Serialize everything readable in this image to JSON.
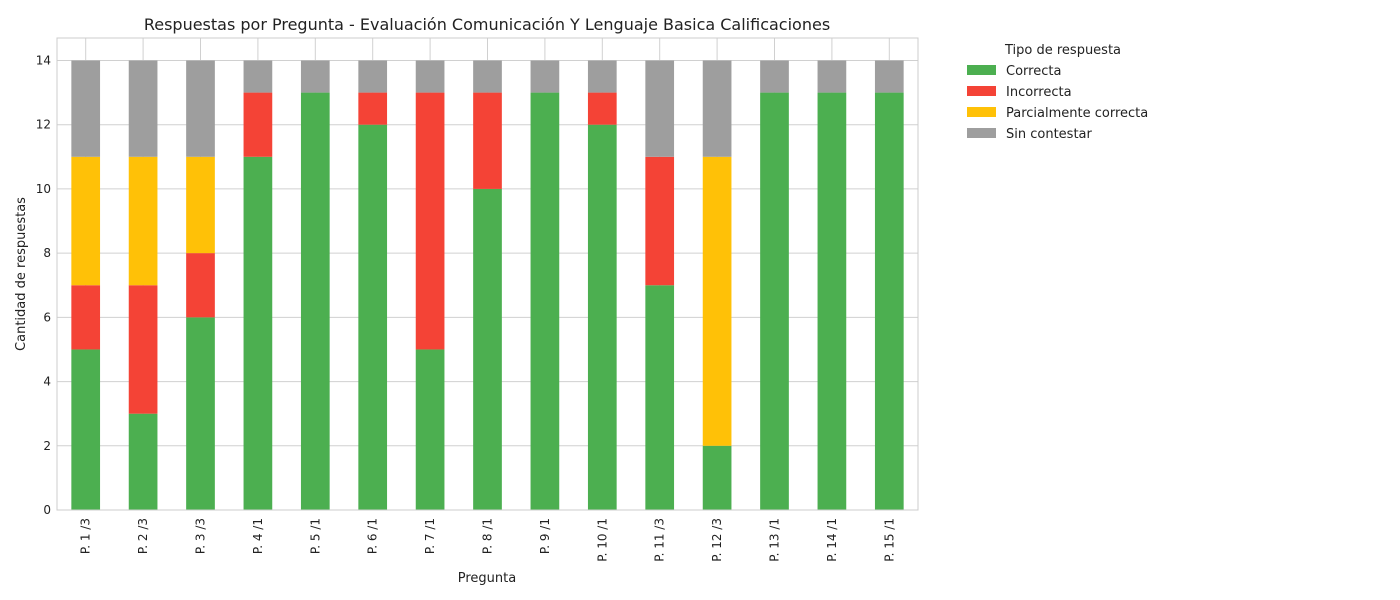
{
  "chart_data": {
    "type": "bar",
    "stacked": true,
    "title": "Respuestas por Pregunta - Evaluación Comunicación Y Lenguaje  Basica Calificaciones",
    "xlabel": "Pregunta",
    "ylabel": "Cantidad de respuestas",
    "ylim": [
      0,
      14.7
    ],
    "yticks": [
      0,
      2,
      4,
      6,
      8,
      10,
      12,
      14
    ],
    "grid": true,
    "legend": {
      "title": "Tipo de respuesta",
      "placement": "outside-top-right"
    },
    "categories": [
      "P. 1 /3",
      "P. 2 /3",
      "P. 3 /3",
      "P. 4 /1",
      "P. 5 /1",
      "P. 6 /1",
      "P. 7 /1",
      "P. 8 /1",
      "P. 9 /1",
      "P. 10 /1",
      "P. 11 /3",
      "P. 12 /3",
      "P. 13 /1",
      "P. 14 /1",
      "P. 15 /1"
    ],
    "series": [
      {
        "name": "Correcta",
        "color": "#4caf50",
        "values": [
          5,
          3,
          6,
          11,
          13,
          12,
          5,
          10,
          13,
          12,
          7,
          2,
          13,
          13,
          13
        ]
      },
      {
        "name": "Incorrecta",
        "color": "#f44336",
        "values": [
          2,
          4,
          2,
          2,
          0,
          1,
          8,
          3,
          0,
          1,
          4,
          0,
          0,
          0,
          0
        ]
      },
      {
        "name": "Parcialmente correcta",
        "color": "#ffc107",
        "values": [
          4,
          4,
          3,
          0,
          0,
          0,
          0,
          0,
          0,
          0,
          0,
          9,
          0,
          0,
          0
        ]
      },
      {
        "name": "Sin contestar",
        "color": "#9e9e9e",
        "values": [
          3,
          3,
          3,
          1,
          1,
          1,
          1,
          1,
          1,
          1,
          3,
          3,
          1,
          1,
          1
        ]
      }
    ]
  }
}
